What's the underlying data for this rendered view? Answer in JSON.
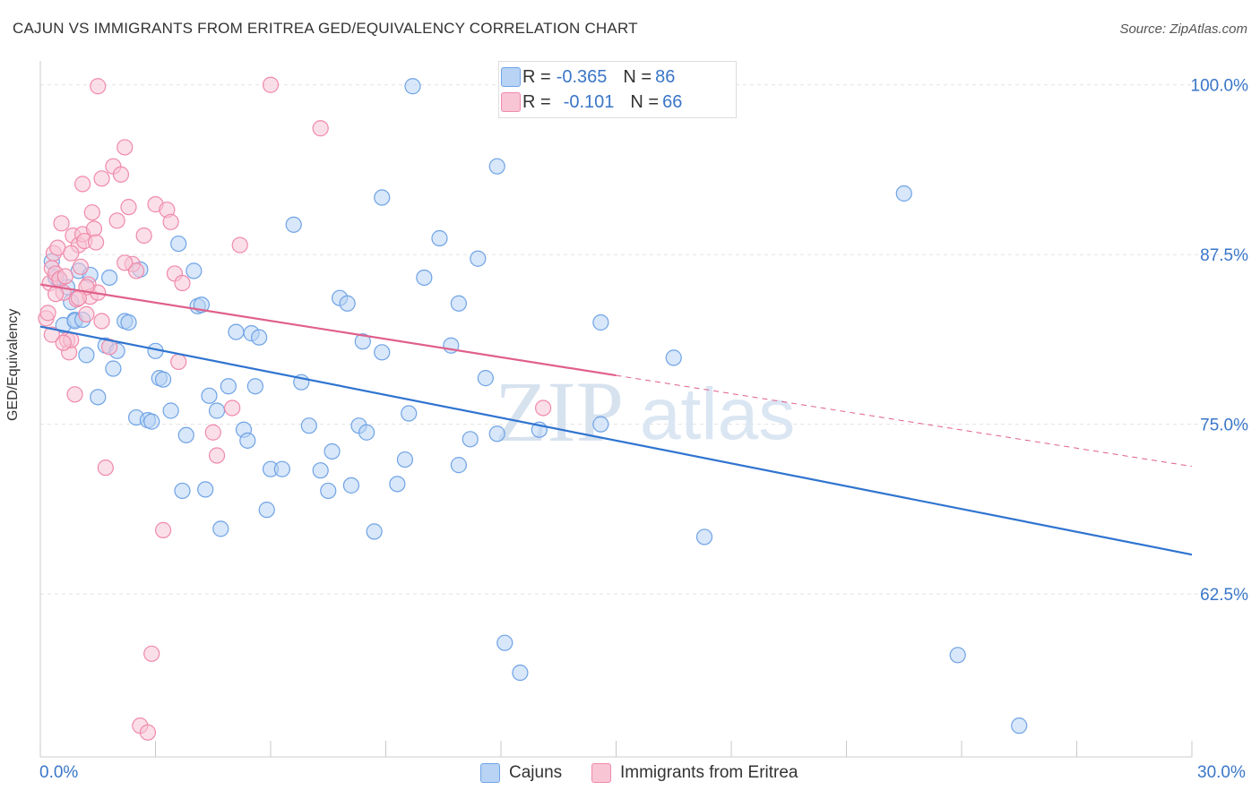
{
  "header": {
    "title": "CAJUN VS IMMIGRANTS FROM ERITREA GED/EQUIVALENCY CORRELATION CHART",
    "source": "Source: ZipAtlas.com"
  },
  "colors": {
    "cajun": "#6fa3e6",
    "cajun_fill": "#b8d3f4",
    "cajun_line": "#2f74d0",
    "eritrea": "#f08aaa",
    "eritrea_fill": "#f8c5d5",
    "eritrea_line": "#e0608a",
    "tick_text": "#3a76c8",
    "watermark": "#dbe6f3"
  },
  "watermark": {
    "zip": "ZIP",
    "atlas": "atlas"
  },
  "legend_top": {
    "rows": [
      {
        "r_label": "R = ",
        "r_value": "-0.365",
        "n_label": "N = ",
        "n_value": "86"
      },
      {
        "r_label": "R = ",
        "r_value": "-0.101",
        "n_label": "N = ",
        "n_value": "66"
      }
    ]
  },
  "legend_bottom": {
    "cajun": "Cajuns",
    "eritrea": "Immigrants from Eritrea"
  },
  "chart_data": {
    "type": "scatter",
    "title": "CAJUN VS IMMIGRANTS FROM ERITREA GED/EQUIVALENCY CORRELATION CHART",
    "xlabel": "",
    "ylabel": "GED/Equivalency",
    "xlim": [
      0,
      30
    ],
    "ylim": [
      50.5,
      101.5
    ],
    "x_tick_labels": [
      "0.0%",
      "30.0%"
    ],
    "y_ticks": [
      62.5,
      75.0,
      87.5,
      100.0
    ],
    "y_tick_labels": [
      "62.5%",
      "75.0%",
      "87.5%",
      "100.0%"
    ],
    "grid": true,
    "legend": "top-center",
    "series": [
      {
        "name": "Cajuns",
        "r": -0.365,
        "n": 86,
        "trend": {
          "x": [
            0.0,
            30.0
          ],
          "y": [
            82.2,
            65.4
          ]
        },
        "points": [
          [
            0.3,
            87.0
          ],
          [
            0.4,
            85.8
          ],
          [
            0.5,
            85.6
          ],
          [
            0.6,
            82.3
          ],
          [
            0.7,
            85.1
          ],
          [
            0.8,
            84.0
          ],
          [
            0.9,
            82.7
          ],
          [
            0.9,
            82.6
          ],
          [
            1.0,
            86.3
          ],
          [
            1.1,
            82.7
          ],
          [
            1.2,
            80.1
          ],
          [
            1.3,
            86.0
          ],
          [
            1.5,
            77.0
          ],
          [
            1.7,
            80.8
          ],
          [
            1.8,
            85.8
          ],
          [
            1.9,
            79.1
          ],
          [
            2.0,
            80.4
          ],
          [
            2.2,
            82.6
          ],
          [
            2.3,
            82.5
          ],
          [
            2.5,
            75.5
          ],
          [
            2.6,
            86.4
          ],
          [
            2.8,
            75.3
          ],
          [
            2.9,
            75.2
          ],
          [
            3.0,
            80.4
          ],
          [
            3.1,
            78.4
          ],
          [
            3.2,
            78.3
          ],
          [
            3.4,
            76.0
          ],
          [
            3.6,
            88.3
          ],
          [
            3.7,
            70.1
          ],
          [
            3.8,
            74.2
          ],
          [
            4.0,
            86.3
          ],
          [
            4.1,
            83.7
          ],
          [
            4.2,
            83.8
          ],
          [
            4.3,
            70.2
          ],
          [
            4.4,
            77.1
          ],
          [
            4.6,
            76.0
          ],
          [
            4.7,
            67.3
          ],
          [
            4.9,
            77.8
          ],
          [
            5.1,
            81.8
          ],
          [
            5.3,
            74.6
          ],
          [
            5.4,
            73.8
          ],
          [
            5.5,
            81.7
          ],
          [
            5.6,
            77.8
          ],
          [
            5.7,
            81.4
          ],
          [
            5.9,
            68.7
          ],
          [
            6.0,
            71.7
          ],
          [
            6.3,
            71.7
          ],
          [
            6.6,
            89.7
          ],
          [
            6.8,
            78.1
          ],
          [
            7.0,
            74.9
          ],
          [
            7.3,
            71.6
          ],
          [
            7.5,
            70.1
          ],
          [
            7.6,
            73.0
          ],
          [
            7.8,
            84.3
          ],
          [
            8.0,
            83.9
          ],
          [
            8.1,
            70.5
          ],
          [
            8.3,
            74.9
          ],
          [
            8.4,
            81.1
          ],
          [
            8.5,
            74.4
          ],
          [
            8.7,
            67.1
          ],
          [
            8.9,
            91.7
          ],
          [
            8.9,
            80.3
          ],
          [
            9.3,
            70.6
          ],
          [
            9.5,
            72.4
          ],
          [
            9.6,
            75.8
          ],
          [
            9.7,
            99.9
          ],
          [
            10.0,
            85.8
          ],
          [
            10.4,
            88.7
          ],
          [
            10.7,
            80.8
          ],
          [
            10.9,
            72.0
          ],
          [
            10.9,
            83.9
          ],
          [
            11.2,
            73.9
          ],
          [
            11.4,
            87.2
          ],
          [
            11.6,
            78.4
          ],
          [
            11.9,
            94.0
          ],
          [
            11.9,
            74.3
          ],
          [
            12.1,
            58.9
          ],
          [
            12.5,
            56.7
          ],
          [
            13.0,
            74.6
          ],
          [
            14.6,
            82.5
          ],
          [
            14.6,
            75.0
          ],
          [
            16.5,
            79.9
          ],
          [
            17.3,
            66.7
          ],
          [
            22.5,
            92.0
          ],
          [
            23.9,
            58.0
          ],
          [
            25.5,
            52.8
          ]
        ]
      },
      {
        "name": "Immigrants from Eritrea",
        "r": -0.101,
        "n": 66,
        "trend": {
          "x": [
            0.0,
            30.0
          ],
          "y": [
            85.3,
            71.9
          ]
        },
        "trend_solid_until_x": 15.0,
        "points": [
          [
            0.15,
            82.8
          ],
          [
            0.2,
            83.2
          ],
          [
            0.25,
            85.4
          ],
          [
            0.3,
            86.5
          ],
          [
            0.35,
            87.6
          ],
          [
            0.4,
            86.1
          ],
          [
            0.45,
            88.0
          ],
          [
            0.5,
            85.7
          ],
          [
            0.55,
            89.8
          ],
          [
            0.6,
            84.7
          ],
          [
            0.65,
            85.9
          ],
          [
            0.7,
            81.2
          ],
          [
            0.75,
            80.3
          ],
          [
            0.8,
            81.2
          ],
          [
            0.85,
            88.9
          ],
          [
            0.9,
            77.2
          ],
          [
            0.95,
            84.2
          ],
          [
            1.0,
            88.2
          ],
          [
            1.05,
            86.6
          ],
          [
            1.1,
            89.0
          ],
          [
            1.1,
            92.7
          ],
          [
            1.15,
            88.5
          ],
          [
            1.2,
            83.1
          ],
          [
            1.25,
            85.3
          ],
          [
            1.3,
            84.4
          ],
          [
            1.35,
            90.6
          ],
          [
            1.4,
            89.4
          ],
          [
            1.45,
            88.4
          ],
          [
            1.5,
            99.9
          ],
          [
            1.5,
            84.7
          ],
          [
            1.6,
            93.1
          ],
          [
            1.7,
            71.8
          ],
          [
            1.8,
            80.7
          ],
          [
            1.9,
            94.0
          ],
          [
            2.0,
            90.0
          ],
          [
            2.1,
            93.4
          ],
          [
            2.2,
            95.4
          ],
          [
            2.3,
            91.0
          ],
          [
            2.4,
            86.8
          ],
          [
            2.5,
            86.3
          ],
          [
            2.6,
            52.8
          ],
          [
            2.7,
            88.9
          ],
          [
            2.8,
            52.3
          ],
          [
            2.9,
            58.1
          ],
          [
            3.0,
            91.2
          ],
          [
            3.2,
            67.2
          ],
          [
            3.3,
            90.8
          ],
          [
            3.4,
            89.9
          ],
          [
            3.5,
            86.1
          ],
          [
            3.6,
            79.6
          ],
          [
            3.7,
            85.4
          ],
          [
            4.5,
            74.4
          ],
          [
            4.6,
            72.7
          ],
          [
            5.0,
            76.2
          ],
          [
            5.2,
            88.2
          ],
          [
            6.0,
            100.0
          ],
          [
            7.3,
            96.8
          ],
          [
            13.1,
            76.2
          ],
          [
            0.4,
            84.6
          ],
          [
            1.2,
            85.1
          ],
          [
            0.6,
            81.0
          ],
          [
            1.0,
            84.3
          ],
          [
            0.8,
            87.6
          ],
          [
            2.2,
            86.9
          ],
          [
            0.3,
            81.6
          ],
          [
            1.6,
            82.6
          ]
        ]
      }
    ]
  }
}
